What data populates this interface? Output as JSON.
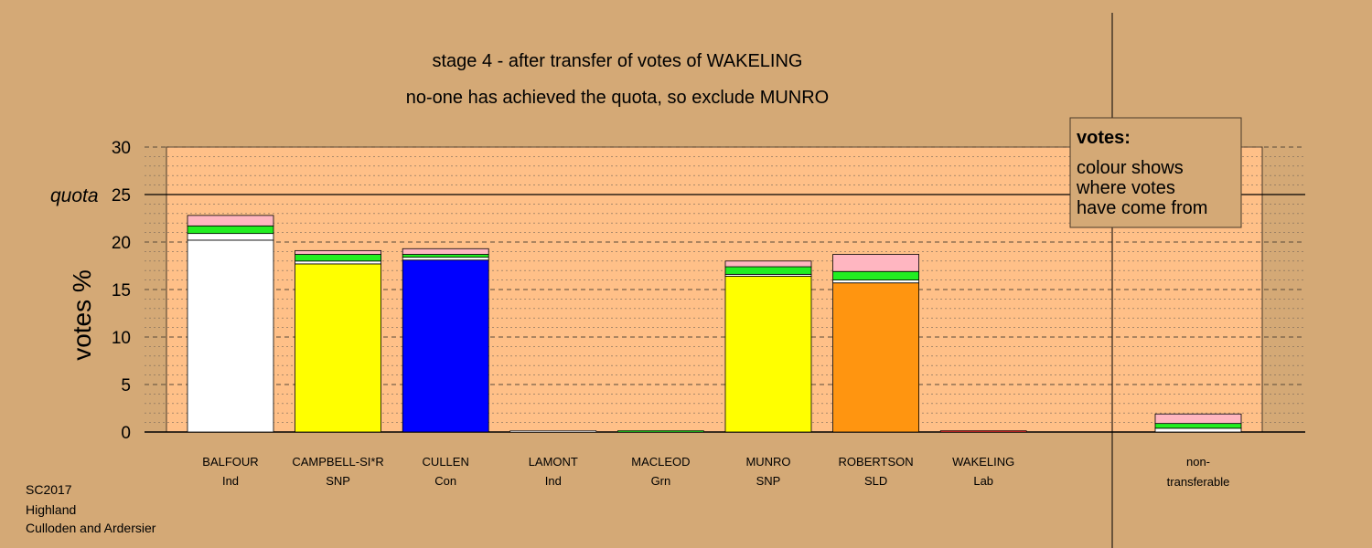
{
  "chart_data": {
    "type": "bar",
    "title": "stage 4 - after transfer of votes of WAKELING",
    "subtitle": "no-one has achieved the quota, so exclude MUNRO",
    "ylabel": "votes %",
    "ylim": [
      0,
      30
    ],
    "yticks": [
      0,
      5,
      10,
      15,
      20,
      25,
      30
    ],
    "quota": 25,
    "quota_label": "quota",
    "grid": "dashed",
    "source_colors": {
      "own": "per-candidate",
      "transfer_1": "#ffffff",
      "transfer_2": "#22ee22",
      "transfer_3": "#ffb6c1"
    },
    "bars": [
      {
        "name": "BALFOUR",
        "party": "Ind",
        "color": "#ffffff",
        "segments": [
          {
            "value": 20.2,
            "color": "#ffffff"
          },
          {
            "value": 0.7,
            "color": "#ffffff"
          },
          {
            "value": 0.8,
            "color": "#22ee22"
          },
          {
            "value": 1.1,
            "color": "#ffb6c1"
          }
        ]
      },
      {
        "name": "CAMPBELL-SI*R",
        "party": "SNP",
        "color": "#ffff00",
        "segments": [
          {
            "value": 17.7,
            "color": "#ffff00"
          },
          {
            "value": 0.3,
            "color": "#ffffff"
          },
          {
            "value": 0.7,
            "color": "#22ee22"
          },
          {
            "value": 0.4,
            "color": "#ffb6c1"
          }
        ]
      },
      {
        "name": "CULLEN",
        "party": "Con",
        "color": "#0000ff",
        "segments": [
          {
            "value": 18.1,
            "color": "#0000ff"
          },
          {
            "value": 0.3,
            "color": "#ffffff"
          },
          {
            "value": 0.3,
            "color": "#22ee22"
          },
          {
            "value": 0.6,
            "color": "#ffb6c1"
          }
        ]
      },
      {
        "name": "LAMONT",
        "party": "Ind",
        "color": "#ffffff",
        "segments": []
      },
      {
        "name": "MACLEOD",
        "party": "Grn",
        "color": "#22ee22",
        "segments": []
      },
      {
        "name": "MUNRO",
        "party": "SNP",
        "color": "#ffff00",
        "segments": [
          {
            "value": 16.4,
            "color": "#ffff00"
          },
          {
            "value": 0.2,
            "color": "#ffffff"
          },
          {
            "value": 0.8,
            "color": "#22ee22"
          },
          {
            "value": 0.6,
            "color": "#ffb6c1"
          }
        ]
      },
      {
        "name": "ROBERTSON",
        "party": "SLD",
        "color": "#ff9510",
        "segments": [
          {
            "value": 15.7,
            "color": "#ff9510"
          },
          {
            "value": 0.3,
            "color": "#ffffff"
          },
          {
            "value": 0.9,
            "color": "#22ee22"
          },
          {
            "value": 1.8,
            "color": "#ffb6c1"
          }
        ]
      },
      {
        "name": "WAKELING",
        "party": "Lab",
        "color": "#ff3030",
        "segments": []
      },
      {
        "name": "non-",
        "party": "transferable",
        "color": "#ffffff",
        "nontransferable": true,
        "segments": [
          {
            "value": 0.4,
            "color": "#ffffff"
          },
          {
            "value": 0.5,
            "color": "#22ee22"
          },
          {
            "value": 1.0,
            "color": "#ffb6c1"
          }
        ]
      }
    ],
    "legend": {
      "title": "votes:",
      "lines": [
        "colour shows",
        "where votes",
        "have come from"
      ],
      "placement": "top-right"
    }
  },
  "footer": {
    "lines": [
      "SC2017",
      "Highland",
      "Culloden and Ardersier"
    ]
  }
}
